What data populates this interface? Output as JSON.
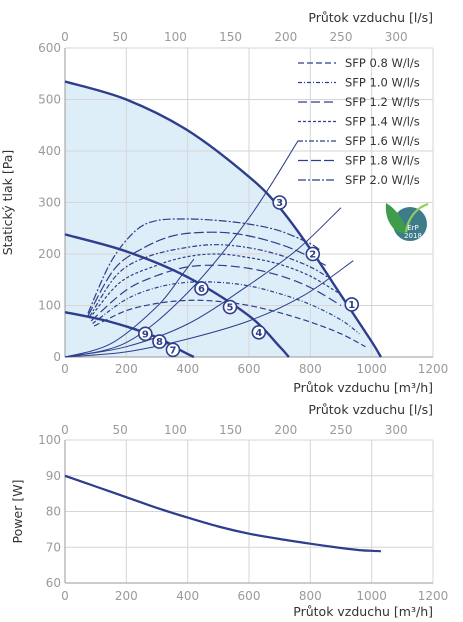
{
  "chart_data": [
    {
      "type": "line",
      "title": "",
      "xlabel": "Průtok vzduchu [m³/h]",
      "x2label": "Průtok vzduchu [l/s]",
      "ylabel": "Statický tlak [Pa]",
      "xlim": [
        0,
        1200
      ],
      "x2lim": [
        0,
        333.33
      ],
      "ylim": [
        0,
        600
      ],
      "xticks": [
        "0",
        "200",
        "400",
        "600",
        "800",
        "1000",
        "1200"
      ],
      "x2ticks": [
        "0",
        "50",
        "100",
        "150",
        "200",
        "250",
        "300"
      ],
      "yticks": [
        "0",
        "100",
        "200",
        "300",
        "400",
        "500",
        "600"
      ],
      "grid": true,
      "legend_position": "top-right",
      "fan_curves": [
        {
          "x": [
            0,
            200,
            400,
            600,
            700,
            800,
            900,
            1000,
            1030
          ],
          "y": [
            535,
            500,
            440,
            350,
            290,
            210,
            120,
            30,
            0
          ]
        },
        {
          "x": [
            0,
            200,
            400,
            600,
            700,
            730
          ],
          "y": [
            238,
            205,
            155,
            80,
            20,
            0
          ]
        },
        {
          "x": [
            0,
            150,
            300,
            380,
            420
          ],
          "y": [
            87,
            68,
            38,
            12,
            0
          ]
        }
      ],
      "system_curves": [
        {
          "x": [
            0,
            200,
            400,
            600,
            780,
            940
          ],
          "y": [
            0,
            10,
            35,
            70,
            120,
            187
          ]
        },
        {
          "x": [
            0,
            200,
            400,
            600,
            760,
            900
          ],
          "y": [
            0,
            20,
            64,
            140,
            210,
            290
          ]
        },
        {
          "x": [
            0,
            200,
            400,
            600,
            760
          ],
          "y": [
            0,
            28,
            125,
            270,
            420
          ]
        },
        {
          "x": [
            0,
            150,
            300,
            380,
            420
          ],
          "y": [
            0,
            26,
            98,
            158,
            190
          ]
        }
      ],
      "series": [
        {
          "name": "SFP 0.8 W/l/s",
          "x": [
            95,
            200,
            300,
            400,
            500,
            600,
            700,
            800,
            900,
            980
          ],
          "y": [
            60,
            90,
            104,
            110,
            108,
            100,
            86,
            68,
            45,
            20
          ]
        },
        {
          "name": "SFP 1.0 W/l/s",
          "x": [
            90,
            200,
            300,
            400,
            500,
            600,
            700,
            800,
            900,
            960
          ],
          "y": [
            65,
            112,
            135,
            145,
            145,
            138,
            123,
            102,
            72,
            45
          ]
        },
        {
          "name": "SFP 1.2 W/l/s",
          "x": [
            85,
            200,
            300,
            400,
            500,
            600,
            700,
            800,
            900
          ],
          "y": [
            70,
            130,
            158,
            175,
            178,
            172,
            158,
            135,
            100
          ]
        },
        {
          "name": "SFP 1.4 W/l/s",
          "x": [
            80,
            180,
            300,
            400,
            500,
            600,
            700,
            800,
            890
          ],
          "y": [
            75,
            145,
            178,
            195,
            200,
            193,
            180,
            157,
            125
          ]
        },
        {
          "name": "SFP 1.6 W/l/s",
          "x": [
            80,
            170,
            270,
            400,
            500,
            600,
            700,
            800,
            870
          ],
          "y": [
            78,
            160,
            195,
            213,
            218,
            212,
            198,
            175,
            150
          ]
        },
        {
          "name": "SFP 1.8 W/l/s",
          "x": [
            75,
            160,
            250,
            350,
            450,
            550,
            650,
            750,
            850
          ],
          "y": [
            80,
            170,
            210,
            235,
            242,
            240,
            228,
            208,
            178
          ]
        },
        {
          "name": "SFP 2.0 W/l/s",
          "x": [
            75,
            150,
            230,
            300,
            400,
            500,
            600,
            700,
            800,
            830
          ],
          "y": [
            85,
            185,
            245,
            265,
            268,
            265,
            258,
            245,
            220,
            208
          ]
        }
      ],
      "markers": [
        {
          "label": "1",
          "x": 935,
          "y": 102
        },
        {
          "label": "2",
          "x": 808,
          "y": 200
        },
        {
          "label": "3",
          "x": 700,
          "y": 300
        },
        {
          "label": "4",
          "x": 632,
          "y": 48
        },
        {
          "label": "5",
          "x": 538,
          "y": 97
        },
        {
          "label": "6",
          "x": 445,
          "y": 133
        },
        {
          "label": "7",
          "x": 352,
          "y": 14
        },
        {
          "label": "8",
          "x": 308,
          "y": 30
        },
        {
          "label": "9",
          "x": 262,
          "y": 45
        }
      ]
    },
    {
      "type": "line",
      "title": "",
      "xlabel": "Průtok vzduchu [m³/h]",
      "x2label": "Průtok vzduchu [l/s]",
      "ylabel": "Power [W]",
      "xlim": [
        0,
        1200
      ],
      "x2lim": [
        0,
        333.33
      ],
      "ylim": [
        60,
        100
      ],
      "xticks": [
        "0",
        "200",
        "400",
        "600",
        "800",
        "1000",
        "1200"
      ],
      "x2ticks": [
        "0",
        "50",
        "100",
        "150",
        "200",
        "250",
        "300"
      ],
      "yticks": [
        "60",
        "70",
        "80",
        "90",
        "100"
      ],
      "grid": true,
      "series": [
        {
          "x": [
            0,
            100,
            200,
            300,
            400,
            500,
            600,
            700,
            800,
            900,
            960,
            1000,
            1030
          ],
          "y": [
            90,
            87,
            84,
            81,
            78.3,
            75.8,
            73.8,
            72.3,
            71.0,
            69.8,
            69.2,
            69.0,
            68.9
          ]
        }
      ]
    }
  ],
  "badge": {
    "line1": "ErP",
    "line2": "2018"
  }
}
